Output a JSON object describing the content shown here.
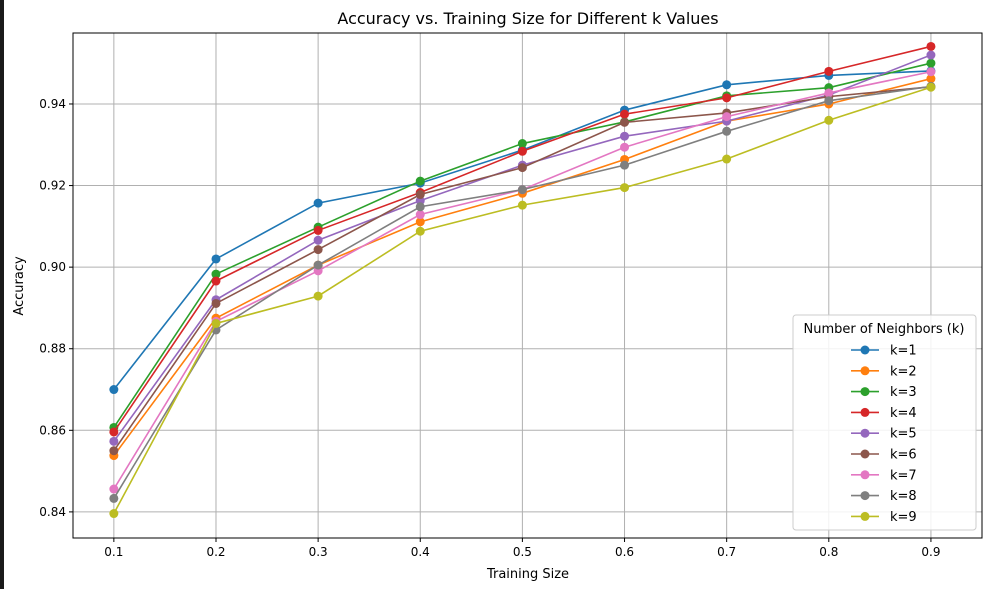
{
  "chart_data": {
    "type": "line",
    "title": "Accuracy vs. Training Size for Different k Values",
    "xlabel": "Training Size",
    "ylabel": "Accuracy",
    "x": [
      0.1,
      0.2,
      0.3,
      0.4,
      0.5,
      0.6,
      0.7,
      0.8,
      0.9
    ],
    "x_ticks": [
      "0.1",
      "0.2",
      "0.3",
      "0.4",
      "0.5",
      "0.6",
      "0.7",
      "0.8",
      "0.9"
    ],
    "y_ticks": [
      "0.84",
      "0.86",
      "0.88",
      "0.90",
      "0.92",
      "0.94"
    ],
    "y_tick_values": [
      0.84,
      0.86,
      0.88,
      0.9,
      0.92,
      0.94
    ],
    "xlim": [
      0.06,
      0.95
    ],
    "ylim": [
      0.8336,
      0.9574
    ],
    "grid": true,
    "legend": {
      "title": "Number of Neighbors (k)",
      "position": "lower-right"
    },
    "series": [
      {
        "name": "k=1",
        "color": "#1f77b4",
        "values": [
          0.87,
          0.902,
          0.9157,
          0.9206,
          0.9287,
          0.9385,
          0.9447,
          0.947,
          0.9481
        ]
      },
      {
        "name": "k=2",
        "color": "#ff7f0e",
        "values": [
          0.8538,
          0.8875,
          0.9005,
          0.9111,
          0.9181,
          0.9264,
          0.9358,
          0.94,
          0.9462
        ]
      },
      {
        "name": "k=3",
        "color": "#2ca02c",
        "values": [
          0.8607,
          0.8983,
          0.9098,
          0.9211,
          0.9303,
          0.9356,
          0.942,
          0.944,
          0.95
        ]
      },
      {
        "name": "k=4",
        "color": "#d62728",
        "values": [
          0.8596,
          0.8966,
          0.909,
          0.9183,
          0.9284,
          0.9375,
          0.9415,
          0.948,
          0.9541
        ]
      },
      {
        "name": "k=5",
        "color": "#9467bd",
        "values": [
          0.8573,
          0.892,
          0.9066,
          0.9163,
          0.925,
          0.9321,
          0.9358,
          0.9422,
          0.952
        ]
      },
      {
        "name": "k=6",
        "color": "#8c564b",
        "values": [
          0.855,
          0.8911,
          0.9043,
          0.9178,
          0.9244,
          0.9355,
          0.9378,
          0.9418,
          0.9442
        ]
      },
      {
        "name": "k=7",
        "color": "#e377c2",
        "values": [
          0.8456,
          0.8867,
          0.8991,
          0.9129,
          0.919,
          0.9294,
          0.9369,
          0.9427,
          0.9479
        ]
      },
      {
        "name": "k=8",
        "color": "#7f7f7f",
        "values": [
          0.8433,
          0.8846,
          0.9005,
          0.9148,
          0.919,
          0.925,
          0.9333,
          0.9408,
          0.9443
        ]
      },
      {
        "name": "k=9",
        "color": "#bcbd22",
        "values": [
          0.8396,
          0.8862,
          0.8929,
          0.9088,
          0.9152,
          0.9195,
          0.9265,
          0.936,
          0.9441
        ]
      }
    ]
  }
}
